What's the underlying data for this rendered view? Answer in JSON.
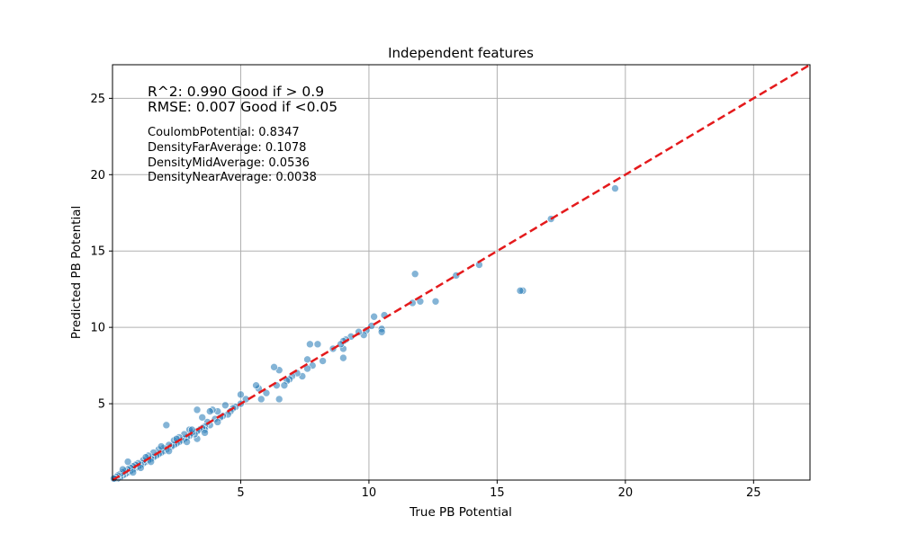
{
  "chart_data": {
    "type": "scatter",
    "title": "Independent features",
    "xlabel": "True PB Potential",
    "ylabel": "Predicted PB Potential",
    "xlim": [
      0.0,
      27.2
    ],
    "ylim": [
      0.0,
      27.2
    ],
    "xticks": [
      5,
      10,
      15,
      20,
      25
    ],
    "yticks": [
      5,
      10,
      15,
      20,
      25
    ],
    "grid": true,
    "annotations": {
      "r2": "R^2: 0.990 Good if > 0.9",
      "rmse": "RMSE: 0.007 Good if <0.05",
      "features": [
        "CoulombPotential: 0.8347",
        "DensityFarAverage: 0.1078",
        "DensityMidAverage: 0.0536",
        "DensityNearAverage: 0.0038"
      ]
    },
    "reference_line": {
      "style": "dashed",
      "color": "#e41a1c",
      "from": [
        0,
        0
      ],
      "to": [
        27.2,
        27.2
      ]
    },
    "point_color": "#1f77b4",
    "points": [
      [
        19.6,
        19.1
      ],
      [
        17.1,
        17.1
      ],
      [
        16.0,
        12.4
      ],
      [
        15.9,
        12.4
      ],
      [
        14.3,
        14.1
      ],
      [
        13.4,
        13.4
      ],
      [
        12.6,
        11.7
      ],
      [
        12.0,
        11.7
      ],
      [
        11.8,
        13.5
      ],
      [
        11.7,
        11.6
      ],
      [
        10.6,
        10.8
      ],
      [
        10.5,
        9.9
      ],
      [
        10.5,
        9.7
      ],
      [
        10.2,
        10.7
      ],
      [
        10.1,
        10.1
      ],
      [
        9.9,
        9.8
      ],
      [
        9.8,
        9.5
      ],
      [
        9.6,
        9.7
      ],
      [
        9.3,
        9.4
      ],
      [
        9.1,
        9.2
      ],
      [
        9.0,
        9.1
      ],
      [
        9.0,
        8.6
      ],
      [
        9.0,
        8.0
      ],
      [
        8.9,
        8.9
      ],
      [
        8.6,
        8.6
      ],
      [
        8.2,
        7.8
      ],
      [
        8.0,
        8.9
      ],
      [
        7.8,
        7.5
      ],
      [
        7.7,
        8.9
      ],
      [
        7.6,
        7.3
      ],
      [
        7.6,
        7.9
      ],
      [
        7.4,
        6.8
      ],
      [
        7.2,
        7.0
      ],
      [
        7.0,
        6.8
      ],
      [
        6.9,
        6.6
      ],
      [
        6.8,
        6.5
      ],
      [
        6.7,
        6.2
      ],
      [
        6.5,
        5.3
      ],
      [
        6.5,
        7.2
      ],
      [
        6.4,
        6.2
      ],
      [
        6.3,
        7.4
      ],
      [
        6.0,
        5.7
      ],
      [
        5.8,
        5.3
      ],
      [
        5.7,
        6.0
      ],
      [
        5.6,
        6.2
      ],
      [
        5.2,
        5.3
      ],
      [
        5.0,
        5.6
      ],
      [
        5.0,
        5.0
      ],
      [
        4.8,
        4.8
      ],
      [
        4.7,
        4.7
      ],
      [
        4.6,
        4.5
      ],
      [
        4.5,
        4.3
      ],
      [
        4.4,
        4.9
      ],
      [
        4.3,
        4.2
      ],
      [
        4.2,
        4.1
      ],
      [
        4.1,
        4.5
      ],
      [
        4.0,
        4.0
      ],
      [
        3.9,
        4.6
      ],
      [
        3.8,
        4.5
      ],
      [
        3.8,
        3.6
      ],
      [
        3.7,
        3.8
      ],
      [
        3.6,
        3.5
      ],
      [
        3.6,
        3.3
      ],
      [
        3.5,
        3.4
      ],
      [
        3.5,
        4.1
      ],
      [
        3.4,
        3.3
      ],
      [
        3.3,
        3.2
      ],
      [
        3.3,
        4.6
      ],
      [
        3.3,
        2.7
      ],
      [
        3.2,
        3.0
      ],
      [
        3.1,
        3.1
      ],
      [
        3.0,
        2.9
      ],
      [
        3.0,
        3.3
      ],
      [
        2.9,
        2.8
      ],
      [
        2.8,
        2.7
      ],
      [
        2.8,
        3.0
      ],
      [
        2.7,
        2.6
      ],
      [
        2.6,
        2.5
      ],
      [
        2.6,
        2.8
      ],
      [
        2.5,
        2.4
      ],
      [
        2.4,
        2.3
      ],
      [
        2.4,
        2.6
      ],
      [
        2.3,
        2.2
      ],
      [
        2.2,
        2.3
      ],
      [
        2.1,
        3.6
      ],
      [
        2.1,
        2.0
      ],
      [
        2.0,
        1.9
      ],
      [
        2.0,
        2.1
      ],
      [
        1.9,
        1.8
      ],
      [
        1.8,
        1.7
      ],
      [
        1.8,
        2.0
      ],
      [
        1.7,
        1.6
      ],
      [
        1.6,
        1.5
      ],
      [
        1.6,
        1.8
      ],
      [
        1.5,
        1.4
      ],
      [
        1.4,
        1.3
      ],
      [
        1.4,
        1.6
      ],
      [
        1.3,
        1.2
      ],
      [
        1.2,
        1.1
      ],
      [
        1.2,
        1.3
      ],
      [
        1.1,
        1.0
      ],
      [
        1.0,
        0.9
      ],
      [
        1.0,
        1.1
      ],
      [
        0.9,
        0.8
      ],
      [
        0.9,
        1.0
      ],
      [
        0.8,
        0.7
      ],
      [
        0.8,
        0.9
      ],
      [
        0.7,
        0.6
      ],
      [
        0.7,
        0.8
      ],
      [
        0.6,
        0.5
      ],
      [
        0.6,
        1.2
      ],
      [
        0.6,
        0.7
      ],
      [
        0.5,
        0.4
      ],
      [
        0.5,
        0.6
      ],
      [
        0.4,
        0.3
      ],
      [
        0.4,
        0.5
      ],
      [
        0.3,
        0.2
      ],
      [
        0.3,
        0.4
      ],
      [
        0.2,
        0.1
      ],
      [
        0.2,
        0.3
      ],
      [
        0.15,
        0.2
      ],
      [
        0.1,
        0.1
      ],
      [
        0.05,
        0.1
      ],
      [
        1.1,
        0.8
      ],
      [
        0.8,
        0.5
      ],
      [
        1.5,
        1.2
      ],
      [
        2.2,
        1.9
      ],
      [
        2.9,
        2.5
      ],
      [
        3.6,
        3.1
      ],
      [
        4.1,
        3.8
      ],
      [
        1.3,
        1.5
      ],
      [
        1.9,
        2.2
      ],
      [
        2.5,
        2.7
      ],
      [
        3.1,
        3.3
      ],
      [
        0.4,
        0.7
      ]
    ]
  }
}
